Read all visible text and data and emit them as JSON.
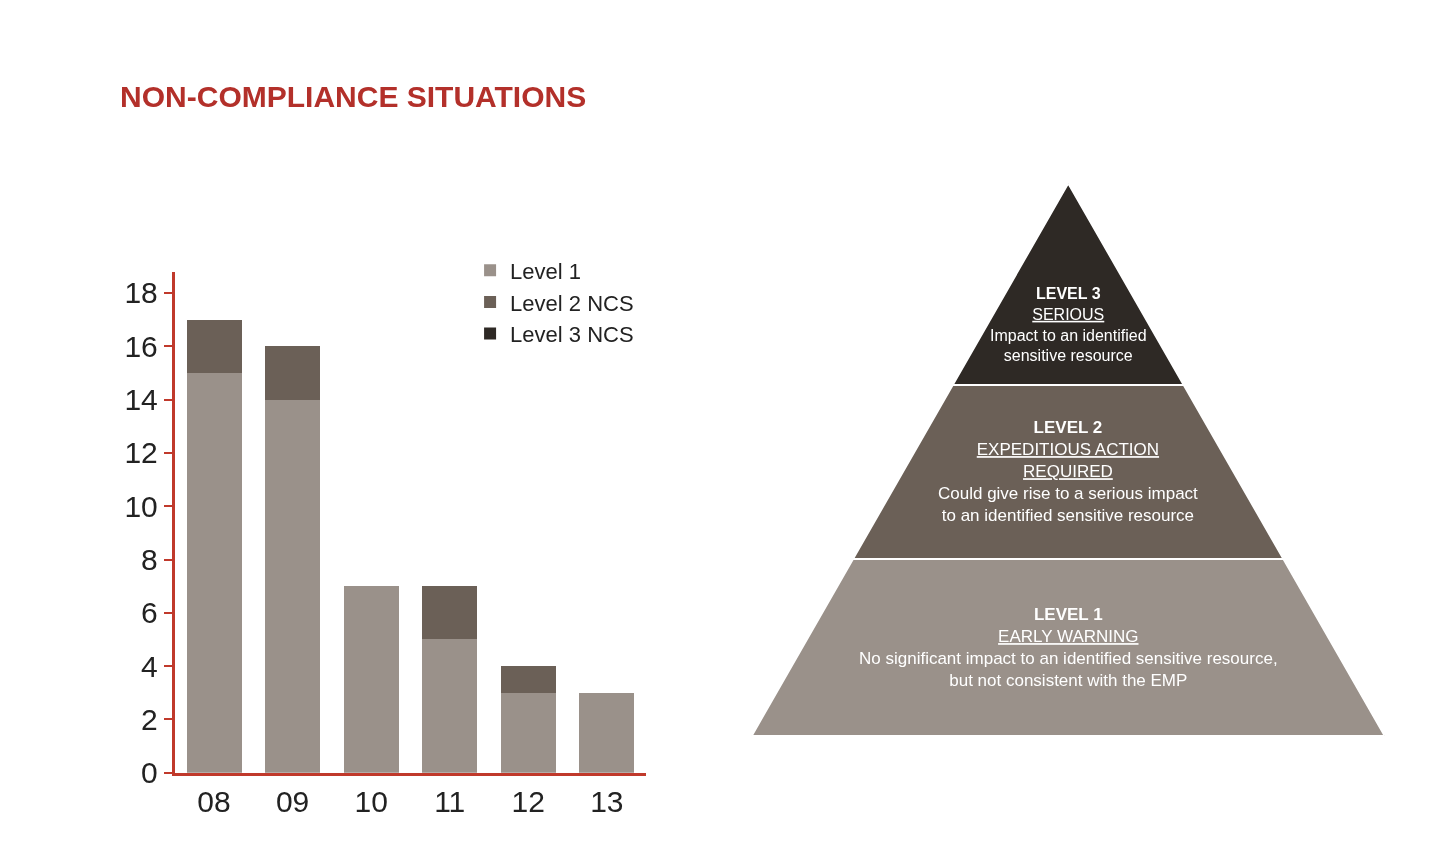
{
  "chart_data": [
    {
      "type": "bar",
      "title": "NON-COMPLIANCE SITUATIONS",
      "stacked": true,
      "categories": [
        "08",
        "09",
        "10",
        "11",
        "12",
        "13"
      ],
      "series": [
        {
          "name": "Level 1",
          "color": "#9a918a",
          "values": [
            15,
            14,
            7,
            5,
            3,
            3
          ]
        },
        {
          "name": "Level 2 NCS",
          "color": "#6b6057",
          "values": [
            2,
            2,
            0,
            2,
            1,
            0
          ]
        },
        {
          "name": "Level 3 NCS",
          "color": "#2e2925",
          "values": [
            0,
            0,
            0,
            0,
            0,
            0
          ]
        }
      ],
      "ylim": [
        0,
        18.8
      ],
      "yticks": [
        0,
        2,
        4,
        6,
        8,
        10,
        12,
        14,
        16,
        18
      ],
      "legend": "top right"
    },
    {
      "type": "other",
      "categories": [
        "LEVEL 3",
        "LEVEL 2",
        "LEVEL 1"
      ],
      "colors": [
        "#2e2925",
        "#6b6057",
        "#9a918a"
      ],
      "annotations": [
        "SERIOUS",
        "Impact to an identified sensitive resource",
        "EXPEDITIOUS ACTION REQUIRED",
        "Could give rise to a serious impact to an identified sensitive resource",
        "EARLY WARNING",
        "No significant impact to an identified sensitive resource, but not consistent with the EMP"
      ]
    }
  ]
}
